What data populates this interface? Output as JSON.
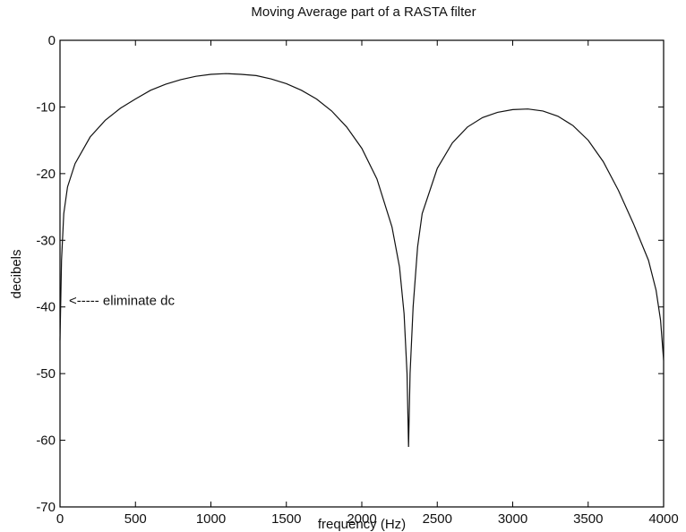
{
  "chart_data": {
    "type": "line",
    "title": "Moving Average part of a RASTA filter",
    "xlabel": "frequency (Hz)",
    "ylabel": "decibels",
    "xlim": [
      0,
      4000
    ],
    "ylim": [
      -70,
      0
    ],
    "xticks": [
      0,
      500,
      1000,
      1500,
      2000,
      2500,
      3000,
      3500,
      4000
    ],
    "yticks": [
      0,
      -10,
      -20,
      -30,
      -40,
      -50,
      -60,
      -70
    ],
    "grid": false,
    "annotation": {
      "text": "<----- eliminate dc",
      "x": 0,
      "y": -39
    },
    "series": [
      {
        "points": [
          [
            0,
            -45
          ],
          [
            10,
            -33
          ],
          [
            25,
            -26
          ],
          [
            50,
            -22
          ],
          [
            100,
            -18.5
          ],
          [
            200,
            -14.5
          ],
          [
            300,
            -12
          ],
          [
            400,
            -10.2
          ],
          [
            500,
            -8.8
          ],
          [
            600,
            -7.5
          ],
          [
            700,
            -6.6
          ],
          [
            800,
            -5.9
          ],
          [
            900,
            -5.4
          ],
          [
            1000,
            -5.1
          ],
          [
            1100,
            -5.0
          ],
          [
            1200,
            -5.1
          ],
          [
            1300,
            -5.3
          ],
          [
            1400,
            -5.8
          ],
          [
            1500,
            -6.5
          ],
          [
            1600,
            -7.5
          ],
          [
            1700,
            -8.8
          ],
          [
            1800,
            -10.6
          ],
          [
            1900,
            -13.0
          ],
          [
            2000,
            -16.2
          ],
          [
            2100,
            -20.8
          ],
          [
            2200,
            -28.0
          ],
          [
            2250,
            -34.0
          ],
          [
            2280,
            -41.0
          ],
          [
            2300,
            -50.0
          ],
          [
            2310,
            -61.0
          ],
          [
            2320,
            -50.0
          ],
          [
            2340,
            -40.0
          ],
          [
            2370,
            -31.0
          ],
          [
            2400,
            -26.0
          ],
          [
            2500,
            -19.2
          ],
          [
            2600,
            -15.4
          ],
          [
            2700,
            -13.0
          ],
          [
            2800,
            -11.6
          ],
          [
            2900,
            -10.8
          ],
          [
            3000,
            -10.4
          ],
          [
            3100,
            -10.3
          ],
          [
            3200,
            -10.6
          ],
          [
            3300,
            -11.4
          ],
          [
            3400,
            -12.8
          ],
          [
            3500,
            -15.0
          ],
          [
            3600,
            -18.2
          ],
          [
            3700,
            -22.5
          ],
          [
            3800,
            -27.5
          ],
          [
            3900,
            -33.0
          ],
          [
            3950,
            -37.5
          ],
          [
            3980,
            -42.0
          ],
          [
            4000,
            -48.0
          ]
        ]
      }
    ]
  }
}
